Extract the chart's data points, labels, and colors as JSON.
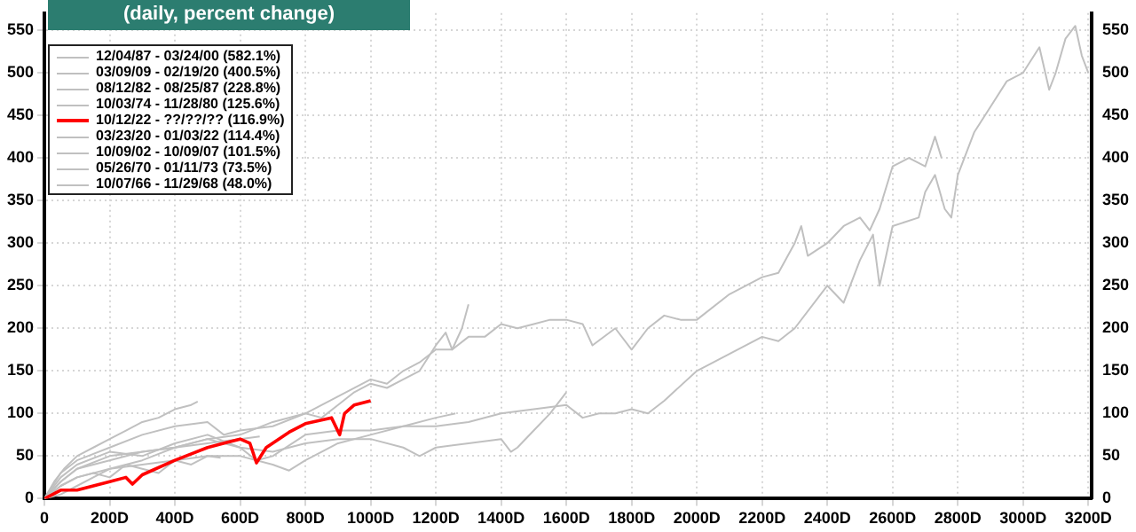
{
  "chart_data": {
    "type": "line",
    "title": "(daily, percent change)",
    "legend": "top left",
    "grid": true,
    "marker": "none",
    "line_style": "solid",
    "xlim": [
      0,
      3210
    ],
    "xticks": [
      0,
      {
        "value": 200,
        "label": "200D"
      },
      {
        "value": 400,
        "label": "400D"
      },
      {
        "value": 600,
        "label": "600D"
      },
      {
        "value": 800,
        "label": "800D"
      },
      {
        "value": 1000,
        "label": "1000D"
      },
      {
        "value": 1200,
        "label": "1200D"
      },
      {
        "value": 1400,
        "label": "1400D"
      },
      {
        "value": 1600,
        "label": "1600D"
      },
      {
        "value": 1800,
        "label": "1800D"
      },
      {
        "value": 2000,
        "label": "2000D"
      },
      {
        "value": 2200,
        "label": "2200D"
      },
      {
        "value": 2400,
        "label": "2400D"
      },
      {
        "value": 2600,
        "label": "2600D"
      },
      {
        "value": 2800,
        "label": "2800D"
      },
      {
        "value": 3000,
        "label": "3000D"
      },
      {
        "value": 3200,
        "label": "3200D"
      }
    ],
    "ylim": [
      0,
      570
    ],
    "yticks": [
      0,
      50,
      100,
      150,
      200,
      250,
      300,
      350,
      400,
      450,
      500,
      550
    ],
    "y2lim": [
      0,
      570
    ],
    "y2ticks": [
      0,
      50,
      100,
      150,
      200,
      250,
      300,
      350,
      400,
      450,
      500,
      550
    ],
    "series": [
      {
        "name": "12/04/87 - 03/24/00 (582.1%)",
        "color": "#c0c0c0",
        "x": [
          0,
          50,
          100,
          200,
          300,
          400,
          500,
          600,
          650,
          700,
          800,
          900,
          1000,
          1100,
          1200,
          1300,
          1400,
          1500,
          1600,
          1650,
          1700,
          1750,
          1800,
          1850,
          1900,
          2000,
          2100,
          2200,
          2250,
          2300,
          2400,
          2450,
          2500,
          2540,
          2560,
          2600,
          2680,
          2700,
          2730,
          2760,
          2780,
          2800,
          2850,
          2900,
          2950,
          3000,
          3050,
          3080,
          3100,
          3130,
          3160,
          3180,
          3200
        ],
        "values": [
          0,
          15,
          25,
          35,
          45,
          60,
          70,
          60,
          45,
          50,
          75,
          80,
          80,
          85,
          85,
          90,
          100,
          105,
          110,
          95,
          100,
          100,
          105,
          100,
          115,
          150,
          170,
          190,
          185,
          200,
          250,
          230,
          280,
          310,
          250,
          320,
          330,
          360,
          380,
          340,
          330,
          380,
          430,
          460,
          490,
          500,
          530,
          480,
          500,
          540,
          555,
          520,
          500
        ]
      },
      {
        "name": "03/09/09 - 02/19/20 (400.5%)",
        "color": "#c0c0c0",
        "x": [
          0,
          50,
          100,
          200,
          300,
          400,
          500,
          550,
          600,
          700,
          800,
          900,
          1000,
          1050,
          1100,
          1150,
          1200,
          1250,
          1300,
          1350,
          1400,
          1450,
          1500,
          1550,
          1600,
          1650,
          1680,
          1750,
          1800,
          1850,
          1900,
          1950,
          2000,
          2100,
          2200,
          2250,
          2300,
          2320,
          2340,
          2400,
          2450,
          2500,
          2530,
          2560,
          2600,
          2650,
          2700,
          2730,
          2750
        ],
        "values": [
          0,
          30,
          45,
          60,
          75,
          85,
          90,
          75,
          80,
          85,
          100,
          120,
          140,
          135,
          150,
          160,
          175,
          175,
          190,
          190,
          205,
          200,
          205,
          210,
          210,
          205,
          180,
          200,
          175,
          200,
          215,
          210,
          210,
          240,
          260,
          265,
          300,
          320,
          285,
          300,
          320,
          330,
          315,
          340,
          390,
          400,
          390,
          425,
          400
        ]
      },
      {
        "name": "08/12/82 - 08/25/87 (228.8%)",
        "color": "#c0c0c0",
        "x": [
          0,
          50,
          100,
          200,
          300,
          400,
          500,
          600,
          700,
          800,
          850,
          900,
          950,
          1000,
          1050,
          1100,
          1150,
          1200,
          1230,
          1250,
          1280,
          1300
        ],
        "values": [
          0,
          20,
          35,
          50,
          55,
          60,
          70,
          75,
          90,
          100,
          95,
          110,
          125,
          135,
          130,
          140,
          150,
          180,
          195,
          175,
          200,
          228
        ]
      },
      {
        "name": "10/03/74 - 11/28/80 (125.6%)",
        "color": "#c0c0c0",
        "x": [
          0,
          50,
          100,
          200,
          300,
          400,
          500,
          600,
          700,
          800,
          900,
          1000,
          1100,
          1150,
          1200,
          1300,
          1400,
          1430,
          1450,
          1500,
          1550,
          1600
        ],
        "values": [
          0,
          25,
          40,
          55,
          50,
          65,
          75,
          60,
          55,
          65,
          70,
          70,
          60,
          50,
          60,
          65,
          70,
          55,
          60,
          80,
          100,
          125
        ]
      },
      {
        "name": "10/12/22 - ??/??/?? (116.9%)",
        "color": "#ff0000",
        "x": [
          0,
          50,
          100,
          150,
          200,
          250,
          270,
          300,
          400,
          500,
          600,
          630,
          650,
          680,
          750,
          800,
          880,
          905,
          920,
          950,
          1000
        ],
        "values": [
          0,
          10,
          10,
          15,
          20,
          25,
          17,
          28,
          45,
          60,
          70,
          65,
          42,
          60,
          78,
          88,
          95,
          75,
          100,
          110,
          115
        ]
      },
      {
        "name": "03/23/20 - 01/03/22 (114.4%)",
        "color": "#c0c0c0",
        "x": [
          0,
          30,
          60,
          100,
          150,
          200,
          250,
          300,
          350,
          400,
          450,
          470
        ],
        "values": [
          0,
          20,
          35,
          50,
          60,
          70,
          80,
          90,
          95,
          105,
          110,
          114
        ]
      },
      {
        "name": "10/09/02 - 10/09/07 (101.5%)",
        "color": "#c0c0c0",
        "x": [
          0,
          50,
          100,
          150,
          200,
          300,
          400,
          500,
          600,
          700,
          750,
          800,
          900,
          1000,
          1100,
          1200,
          1260
        ],
        "values": [
          0,
          5,
          15,
          25,
          35,
          40,
          45,
          50,
          50,
          40,
          33,
          45,
          65,
          75,
          85,
          95,
          100
        ]
      },
      {
        "name": "05/26/70 - 01/11/73 (73.5%)",
        "color": "#c0c0c0",
        "x": [
          0,
          50,
          100,
          200,
          300,
          400,
          500,
          600,
          660
        ],
        "values": [
          0,
          20,
          35,
          45,
          55,
          60,
          65,
          70,
          73
        ]
      },
      {
        "name": "10/07/66 - 11/29/68 (48.0%)",
        "color": "#c0c0c0",
        "x": [
          0,
          50,
          100,
          150,
          200,
          250,
          300,
          350,
          400,
          450,
          500,
          540
        ],
        "values": [
          0,
          15,
          25,
          30,
          25,
          40,
          35,
          30,
          45,
          40,
          50,
          48
        ]
      }
    ]
  }
}
